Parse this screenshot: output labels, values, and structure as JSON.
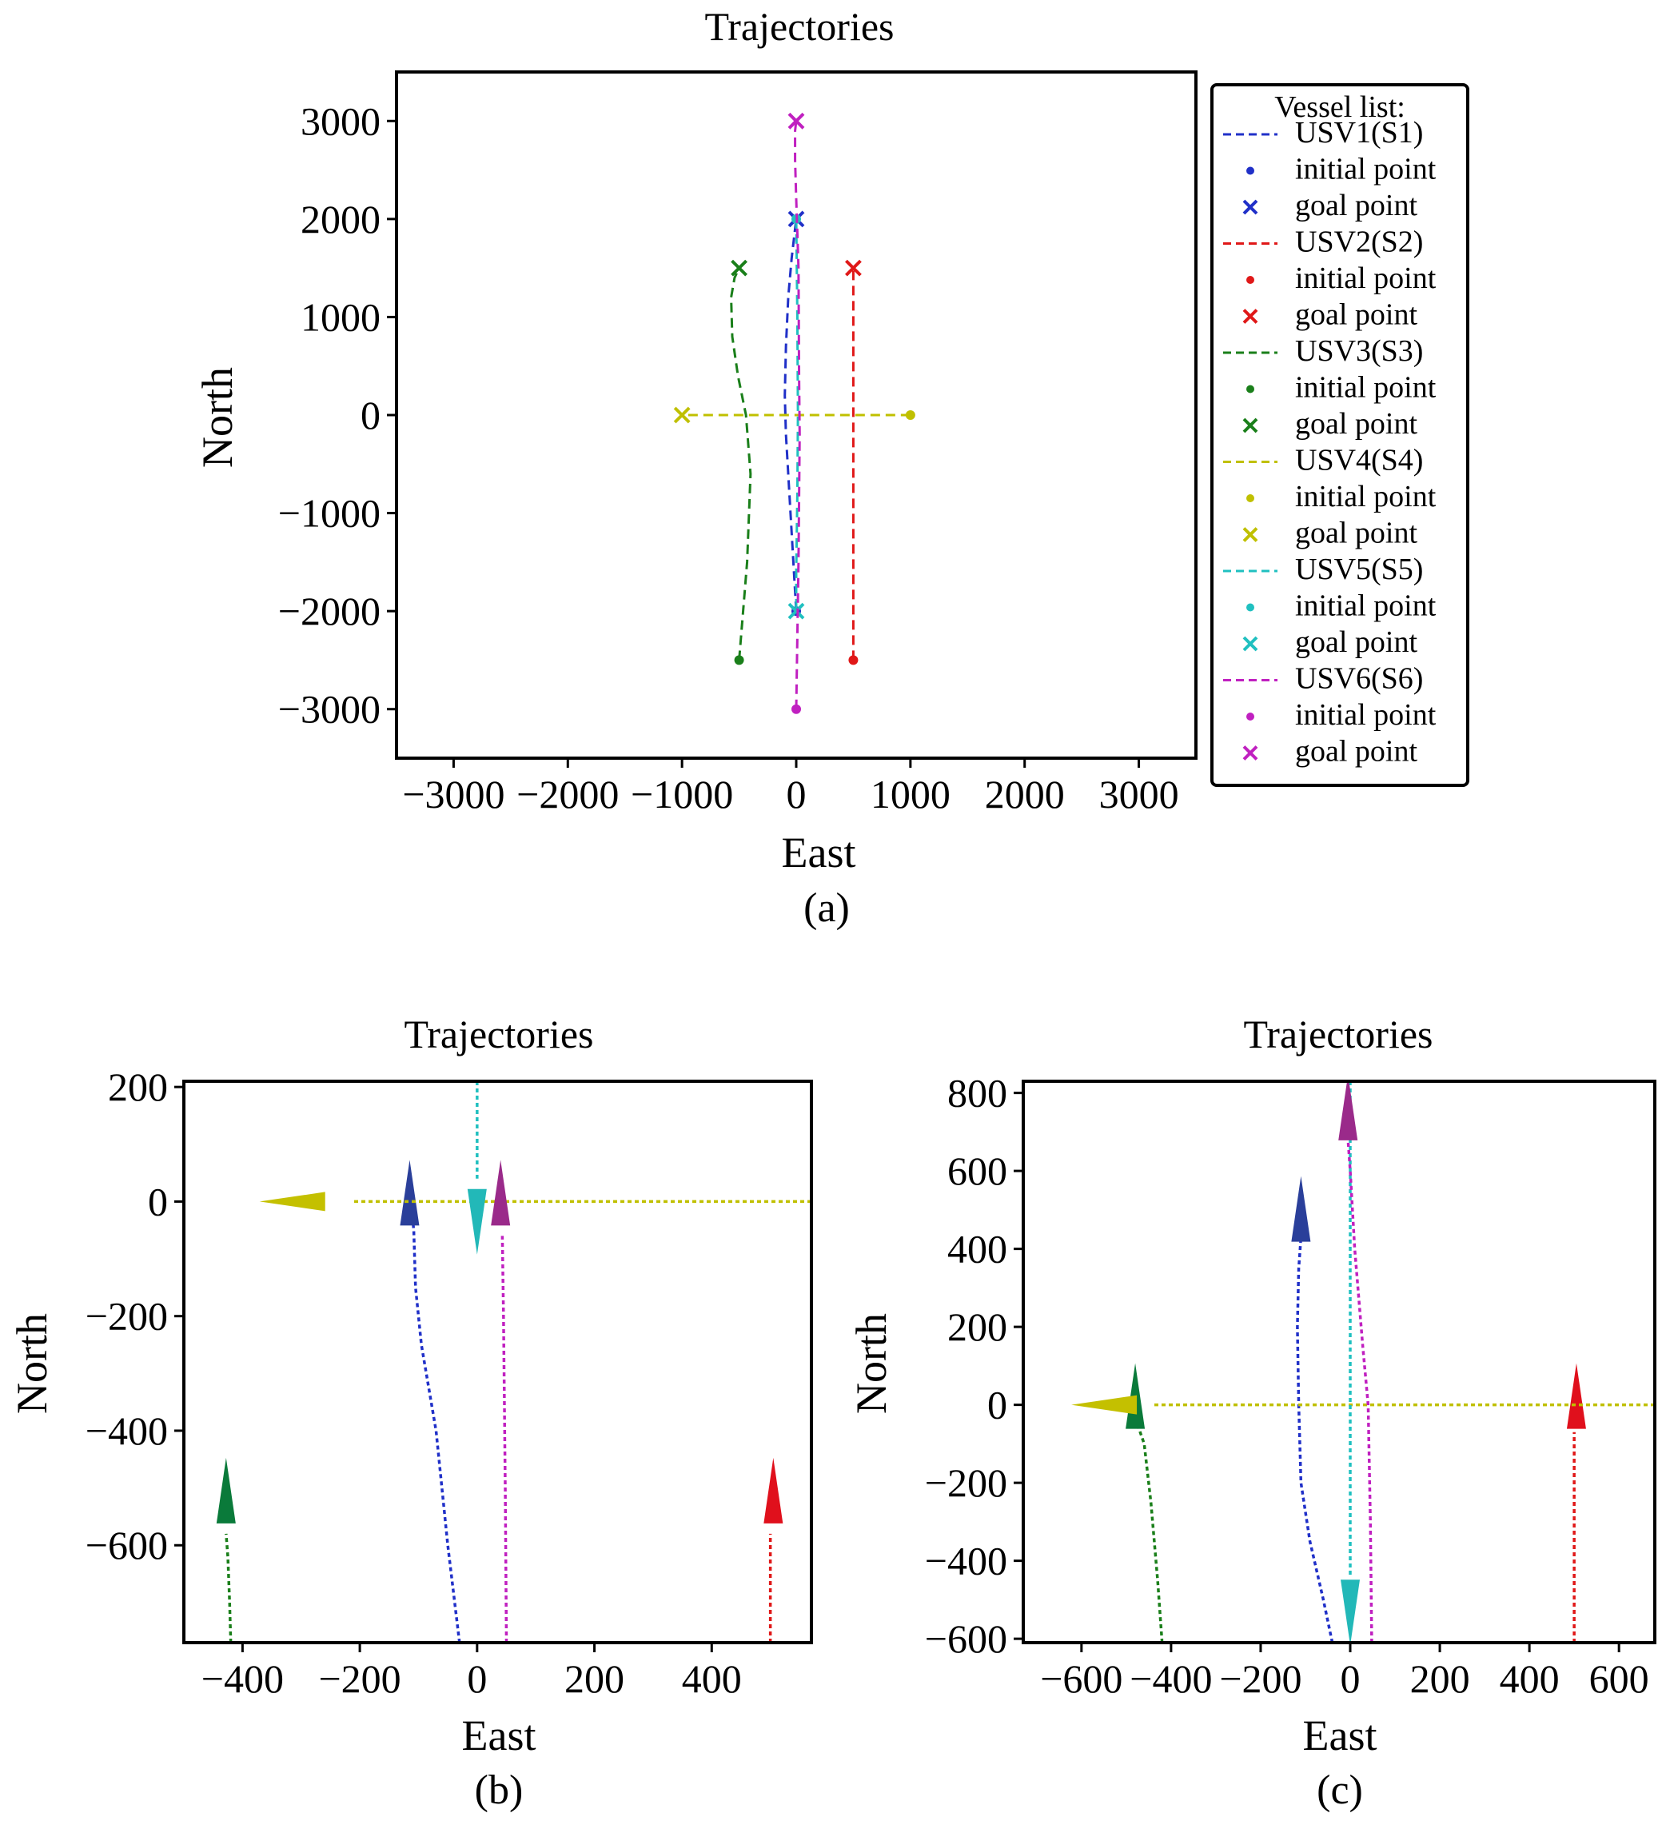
{
  "figure": {
    "panels": [
      "(a)",
      "(b)",
      "(c)"
    ]
  },
  "colors": {
    "USV1": "#2030c8",
    "USV2": "#e01818",
    "USV3": "#1a7f1a",
    "USV4": "#c0c000",
    "USV5": "#20c0c0",
    "USV6": "#c020c0",
    "arrow_USV1": "#2a3f9a",
    "arrow_USV2": "#e0101c",
    "arrow_USV3": "#0a7a3a",
    "arrow_USV4": "#c4c000",
    "arrow_USV5": "#22b8b8",
    "arrow_USV6": "#9a2a8a"
  },
  "chart_data": [
    {
      "type": "line",
      "panel": "(a)",
      "title": "Trajectories",
      "xlabel": "East",
      "ylabel": "North",
      "xlim": [
        -3500,
        3500
      ],
      "ylim": [
        -3500,
        3500
      ],
      "xticks": [
        -3000,
        -2000,
        -1000,
        0,
        1000,
        2000,
        3000
      ],
      "yticks": [
        -3000,
        -2000,
        -1000,
        0,
        1000,
        2000,
        3000
      ],
      "legend": {
        "title": "Vessel list:",
        "position": "outside-right",
        "marker_labels": [
          "initial point",
          "goal point"
        ]
      },
      "series": [
        {
          "name": "USV1(S1)",
          "key": "USV1",
          "initial": [
            0,
            -2000
          ],
          "goal": [
            0,
            2000
          ],
          "x": [
            0,
            -25,
            -60,
            -90,
            -100,
            -90,
            -70,
            -40,
            -20,
            0
          ],
          "y": [
            -2000,
            -1500,
            -800,
            -200,
            200,
            700,
            1200,
            1600,
            1800,
            2000
          ]
        },
        {
          "name": "USV2(S2)",
          "key": "USV2",
          "initial": [
            500,
            -2500
          ],
          "goal": [
            500,
            1500
          ],
          "x": [
            500,
            500
          ],
          "y": [
            -2500,
            1500
          ]
        },
        {
          "name": "USV3(S3)",
          "key": "USV3",
          "initial": [
            -500,
            -2500
          ],
          "goal": [
            -500,
            1500
          ],
          "x": [
            -500,
            -430,
            -400,
            -440,
            -510,
            -560,
            -570,
            -540,
            -500
          ],
          "y": [
            -2500,
            -1500,
            -600,
            0,
            400,
            800,
            1200,
            1400,
            1500
          ]
        },
        {
          "name": "USV4(S4)",
          "key": "USV4",
          "initial": [
            1000,
            0
          ],
          "goal": [
            -1000,
            0
          ],
          "x": [
            1000,
            -900,
            -1000
          ],
          "y": [
            0,
            0,
            0
          ]
        },
        {
          "name": "USV5(S5)",
          "key": "USV5",
          "initial": [
            0,
            2000
          ],
          "goal": [
            0,
            -2000
          ],
          "x": [
            0,
            10,
            15,
            10,
            0,
            0
          ],
          "y": [
            2000,
            1000,
            0,
            -800,
            -1600,
            -2000
          ]
        },
        {
          "name": "USV6(S6)",
          "key": "USV6",
          "initial": [
            0,
            -3000
          ],
          "goal": [
            0,
            3000
          ],
          "x": [
            0,
            20,
            30,
            25,
            20,
            0,
            -10,
            -10,
            0
          ],
          "y": [
            -3000,
            -1500,
            -200,
            400,
            1500,
            2200,
            2600,
            2900,
            3000
          ]
        }
      ]
    },
    {
      "type": "line",
      "panel": "(b)",
      "title": "Trajectories",
      "xlabel": "East",
      "ylabel": "North",
      "xlim": [
        -500,
        570
      ],
      "ylim": [
        -770,
        210
      ],
      "xticks": [
        -400,
        -200,
        0,
        200,
        400
      ],
      "yticks": [
        -600,
        -400,
        -200,
        0,
        200
      ],
      "series": [
        {
          "key": "USV1",
          "x": [
            -30,
            -50,
            -70,
            -95,
            -105,
            -108,
            -110
          ],
          "y": [
            -770,
            -600,
            -400,
            -250,
            -150,
            -50,
            -30
          ],
          "arrow_at": [
            -115,
            0
          ],
          "arrow_dir": "up"
        },
        {
          "key": "USV2",
          "x": [
            500,
            500
          ],
          "y": [
            -770,
            -580
          ],
          "arrow_at": [
            505,
            -520
          ],
          "arrow_dir": "up"
        },
        {
          "key": "USV3",
          "x": [
            -420,
            -422,
            -425,
            -428
          ],
          "y": [
            -770,
            -700,
            -620,
            -580
          ],
          "arrow_at": [
            -428,
            -520
          ],
          "arrow_dir": "up"
        },
        {
          "key": "USV4",
          "x": [
            570,
            -210
          ],
          "y": [
            0,
            0
          ],
          "arrow_at": [
            -300,
            0
          ],
          "arrow_dir": "left"
        },
        {
          "key": "USV5",
          "x": [
            0,
            0
          ],
          "y": [
            210,
            40
          ],
          "arrow_at": [
            0,
            -20
          ],
          "arrow_dir": "down"
        },
        {
          "key": "USV6",
          "x": [
            50,
            48,
            45,
            43
          ],
          "y": [
            -770,
            -500,
            -200,
            -60
          ],
          "arrow_at": [
            40,
            0
          ],
          "arrow_dir": "up"
        }
      ]
    },
    {
      "type": "line",
      "panel": "(c)",
      "title": "Trajectories",
      "xlabel": "East",
      "ylabel": "North",
      "xlim": [
        -730,
        680
      ],
      "ylim": [
        -610,
        830
      ],
      "xticks": [
        -600,
        -400,
        -200,
        0,
        200,
        400,
        600
      ],
      "yticks": [
        -600,
        -400,
        -200,
        0,
        200,
        400,
        600,
        800
      ],
      "series": [
        {
          "key": "USV1",
          "x": [
            -40,
            -60,
            -90,
            -110,
            -115,
            -118,
            -115,
            -110
          ],
          "y": [
            -610,
            -500,
            -350,
            -200,
            0,
            200,
            350,
            430
          ],
          "arrow_at": [
            -110,
            480
          ],
          "arrow_dir": "up"
        },
        {
          "key": "USV2",
          "x": [
            500,
            500
          ],
          "y": [
            -610,
            -70
          ],
          "arrow_at": [
            505,
            0
          ],
          "arrow_dir": "up"
        },
        {
          "key": "USV3",
          "x": [
            -420,
            -430,
            -445,
            -460,
            -475
          ],
          "y": [
            -610,
            -450,
            -250,
            -100,
            -50
          ],
          "arrow_at": [
            -480,
            0
          ],
          "arrow_dir": "up"
        },
        {
          "key": "USV4",
          "x": [
            680,
            -440
          ],
          "y": [
            0,
            0
          ],
          "arrow_at": [
            -530,
            0
          ],
          "arrow_dir": "left"
        },
        {
          "key": "USV5",
          "x": [
            0,
            0
          ],
          "y": [
            830,
            -440
          ],
          "arrow_at": [
            0,
            -510
          ],
          "arrow_dir": "down"
        },
        {
          "key": "USV6",
          "x": [
            48,
            45,
            40,
            28,
            10,
            0,
            -5
          ],
          "y": [
            -610,
            -300,
            0,
            150,
            400,
            600,
            680
          ],
          "arrow_at": [
            -5,
            740
          ],
          "arrow_dir": "up"
        }
      ]
    }
  ]
}
